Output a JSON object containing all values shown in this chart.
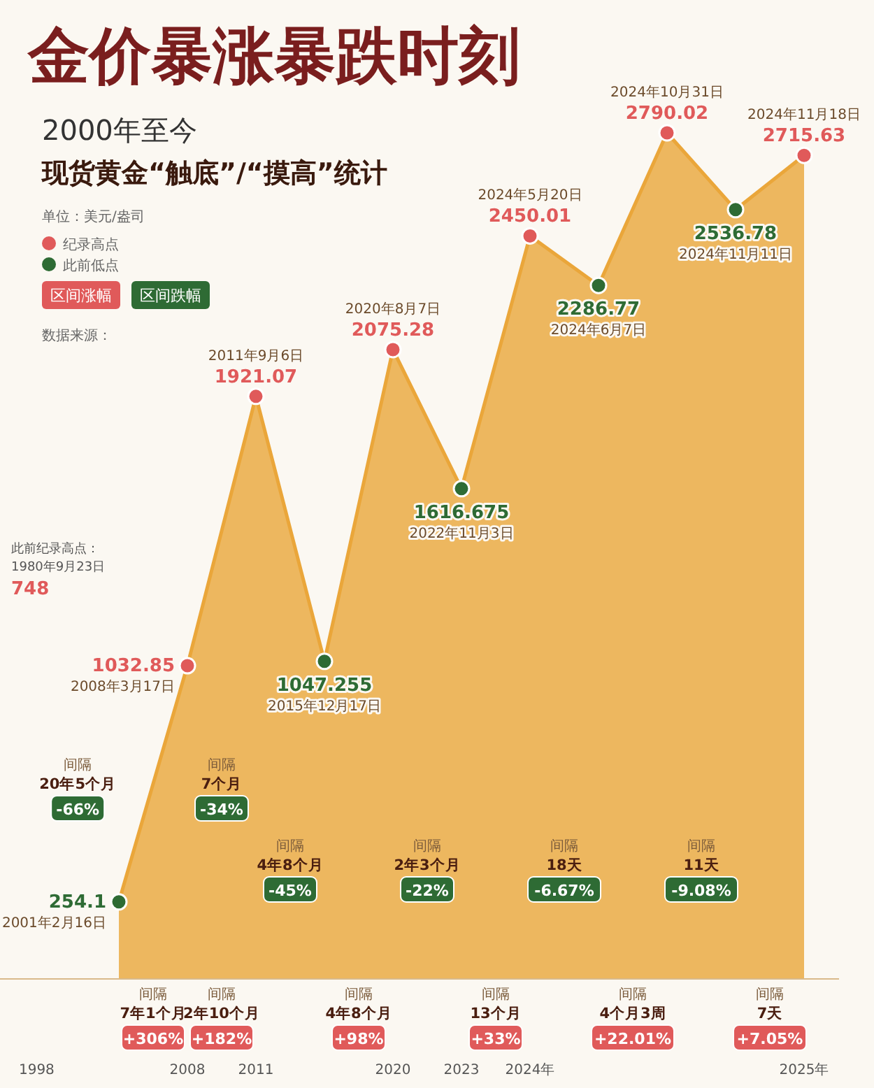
{
  "chart_data": {
    "type": "area",
    "title": "金价暴涨暴跌时刻",
    "subtitle": "2000年至今",
    "categories": [
      null,
      null,
      null,
      null,
      null,
      null,
      null,
      null,
      null,
      null,
      null
    ],
    "values": [
      254.1,
      1032.85,
      1921.07,
      1047.255,
      2075.28,
      1616.675,
      2450.01,
      2286.77,
      2790.02,
      2536.78,
      2715.63
    ],
    "color": "#eaa63a",
    "colors": [
      "#2e6b34",
      "#e05a5a",
      "#e05a5a",
      "#2e6b34",
      "#e05a5a",
      "#2e6b34",
      "#e05a5a",
      "#2e6b34",
      "#e05a5a",
      "#2e6b34",
      "#e05a5a"
    ],
    "data_labels": true,
    "marker": "circle",
    "annotations": [
      "单位：美元/盎司",
      "区间涨幅",
      "区间跌幅",
      "数据来源：",
      "现货黄金“触底”/“摸高”统计",
      "此前纪录高点：\n1980年9月23日\n748",
      "1998",
      "2008",
      "2011",
      "2020",
      "2023",
      "2024年",
      "2025年",
      "间隔\n20年5个月\n-66%",
      "间隔\n7年1个月\n+306%",
      "间隔\n7个月\n-34%",
      "间隔\n2年10个月\n+182%",
      "间隔\n4年8个月\n-45%",
      "间隔\n4年8个月\n+98%",
      "间隔\n2年3个月\n-22%",
      "间隔\n13个月\n+33%",
      "间隔\n18天\n-6.67%",
      "间隔\n4个月3周\n+22.01%",
      "间隔\n11天\n-9.08%",
      "间隔\n7天\n+7.05%",
      "2001年2月16日",
      "2008年3月17日",
      "2011年9月6日",
      "2015年12月17日",
      "2020年8月7日",
      "2022年11月3日",
      "2024年5月20日",
      "2024年6月7日",
      "2024年10月31日",
      "2024年11月11日",
      "2024年11月18日",
      "纪录高点",
      "此前低点"
    ]
  }
}
